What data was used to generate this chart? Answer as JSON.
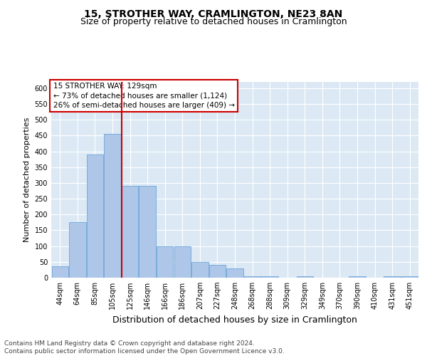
{
  "title": "15, STROTHER WAY, CRAMLINGTON, NE23 8AN",
  "subtitle": "Size of property relative to detached houses in Cramlington",
  "xlabel": "Distribution of detached houses by size in Cramlington",
  "ylabel": "Number of detached properties",
  "categories": [
    "44sqm",
    "64sqm",
    "85sqm",
    "105sqm",
    "125sqm",
    "146sqm",
    "166sqm",
    "186sqm",
    "207sqm",
    "227sqm",
    "248sqm",
    "268sqm",
    "288sqm",
    "309sqm",
    "329sqm",
    "349sqm",
    "370sqm",
    "390sqm",
    "410sqm",
    "431sqm",
    "451sqm"
  ],
  "values": [
    35,
    175,
    390,
    455,
    290,
    290,
    100,
    100,
    50,
    40,
    30,
    5,
    5,
    0,
    5,
    0,
    0,
    5,
    0,
    5,
    5
  ],
  "bar_color": "#aec6e8",
  "bar_edge_color": "#5b9bd5",
  "highlight_line_color": "#cc0000",
  "annotation_text": "15 STROTHER WAY: 129sqm\n← 73% of detached houses are smaller (1,124)\n26% of semi-detached houses are larger (409) →",
  "annotation_box_color": "#ffffff",
  "annotation_box_edge": "#cc0000",
  "ylim": [
    0,
    620
  ],
  "yticks": [
    0,
    50,
    100,
    150,
    200,
    250,
    300,
    350,
    400,
    450,
    500,
    550,
    600
  ],
  "background_color": "#dce9f5",
  "footer_text": "Contains HM Land Registry data © Crown copyright and database right 2024.\nContains public sector information licensed under the Open Government Licence v3.0.",
  "title_fontsize": 10,
  "subtitle_fontsize": 9,
  "xlabel_fontsize": 9,
  "ylabel_fontsize": 8,
  "tick_fontsize": 7,
  "annotation_fontsize": 7.5,
  "footer_fontsize": 6.5
}
